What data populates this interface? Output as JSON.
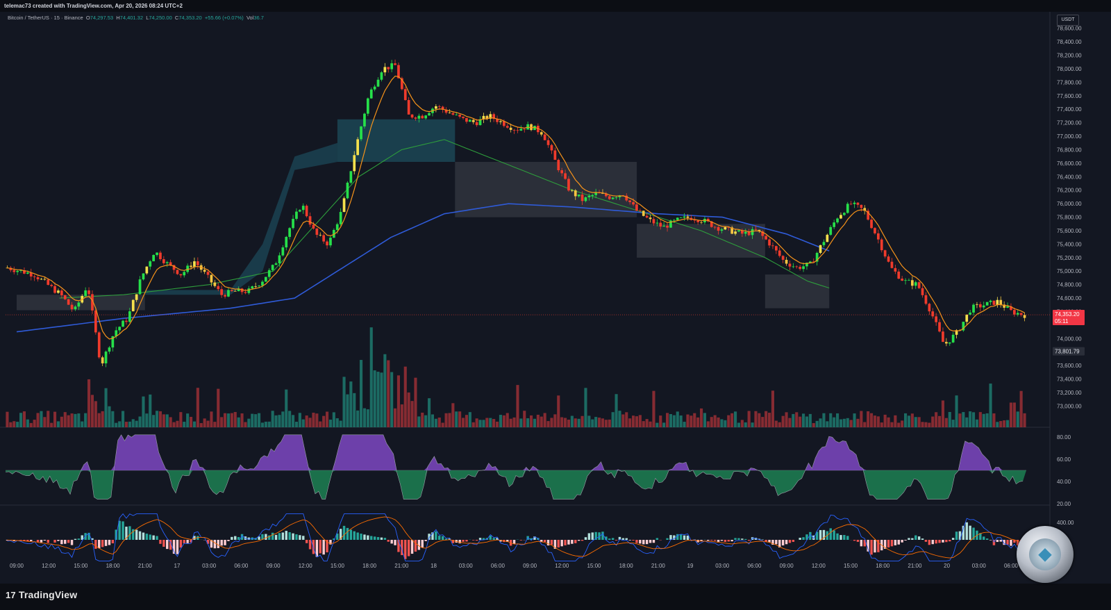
{
  "header": {
    "credit": "telemac73 created with TradingView.com, Apr 20, 2026 08:24 UTC+2"
  },
  "legend": {
    "symbol": "Bitcoin / TetherUS · 15 · Binance",
    "open_label": "O",
    "open": "74,297.53",
    "high_label": "H",
    "high": "74,401.32",
    "low_label": "L",
    "low": "74,250.00",
    "close_label": "C",
    "close": "74,353.20",
    "change": "+55.66 (+0.07%)",
    "vol_label": "Vol",
    "vol": "36.7"
  },
  "price_axis": {
    "currency": "USDT",
    "current_price_label": "74,353.20",
    "countdown": "05:11",
    "marker_label": "73,801.79"
  },
  "indicator_axes": {
    "rsi_ticks": [
      "80.00",
      "60.00",
      "40.00",
      "20.00"
    ],
    "macd_tick": "400.00"
  },
  "footer": {
    "brand_logo": "17",
    "brand": "TradingView"
  },
  "colors": {
    "background": "#131722",
    "up": "#26e04a",
    "down": "#ef3b2c",
    "ema_fast": "#f7931a",
    "ma_green": "#2e9e3c",
    "ma_blue": "#2f5bd8",
    "cloud_teal": "#1f5a6b",
    "cloud_grey": "#4a4d57",
    "rsi_up": "#8c4fd8",
    "rsi_down": "#1f8f5a"
  },
  "chart_data": {
    "type": "candlestick",
    "title": "Bitcoin / TetherUS · 15 · Binance",
    "ylim": [
      72850,
      78700
    ],
    "y_ticks": [
      78600,
      78400,
      78200,
      78000,
      77800,
      77600,
      77400,
      77200,
      77000,
      76800,
      76600,
      76400,
      76200,
      76000,
      75800,
      75600,
      75400,
      75200,
      75000,
      74800,
      74600,
      74400,
      74000,
      73600,
      73400,
      73200,
      73000
    ],
    "y_tick_labels": [
      "78,600.00",
      "78,400.00",
      "78,200.00",
      "78,000.00",
      "77,800.00",
      "77,600.00",
      "77,400.00",
      "77,200.00",
      "77,000.00",
      "76,800.00",
      "76,600.00",
      "76,400.00",
      "76,200.00",
      "76,000.00",
      "75,800.00",
      "75,600.00",
      "75,400.00",
      "75,200.00",
      "75,000.00",
      "74,800.00",
      "74,600.00",
      "74,400.00",
      "74,000.00",
      "73,600.00",
      "73,400.00",
      "73,200.00",
      "73,000.00"
    ],
    "x_labels": [
      "09:00",
      "12:00",
      "15:00",
      "18:00",
      "21:00",
      "17",
      "03:00",
      "06:00",
      "09:00",
      "12:00",
      "15:00",
      "18:00",
      "21:00",
      "18",
      "03:00",
      "06:00",
      "09:00",
      "12:00",
      "15:00",
      "18:00",
      "21:00",
      "19",
      "03:00",
      "06:00",
      "09:00",
      "12:00",
      "15:00",
      "18:00",
      "21:00",
      "20",
      "03:00",
      "06:00"
    ],
    "x_hours_per_label": 3,
    "close_anchors": [
      [
        0,
        75050
      ],
      [
        2,
        74950
      ],
      [
        4,
        74650
      ],
      [
        5,
        74400
      ],
      [
        6,
        74800
      ],
      [
        7,
        73600
      ],
      [
        8,
        74100
      ],
      [
        9,
        74300
      ],
      [
        10,
        74900
      ],
      [
        11,
        75300
      ],
      [
        12,
        75100
      ],
      [
        13,
        74950
      ],
      [
        14,
        75150
      ],
      [
        15,
        74900
      ],
      [
        16,
        74650
      ],
      [
        17,
        74700
      ],
      [
        18,
        74700
      ],
      [
        19,
        74850
      ],
      [
        20,
        75100
      ],
      [
        21,
        75600
      ],
      [
        22,
        76000
      ],
      [
        23,
        75550
      ],
      [
        24,
        75400
      ],
      [
        25,
        75900
      ],
      [
        26,
        76800
      ],
      [
        27,
        77600
      ],
      [
        28,
        78000
      ],
      [
        29,
        78050
      ],
      [
        30,
        77300
      ],
      [
        31,
        77300
      ],
      [
        32,
        77450
      ],
      [
        33,
        77350
      ],
      [
        34,
        77250
      ],
      [
        35,
        77200
      ],
      [
        36,
        77300
      ],
      [
        37,
        77200
      ],
      [
        38,
        77100
      ],
      [
        39,
        77150
      ],
      [
        40,
        77050
      ],
      [
        41,
        76600
      ],
      [
        42,
        76200
      ],
      [
        43,
        76050
      ],
      [
        44,
        76150
      ],
      [
        45,
        76100
      ],
      [
        46,
        76150
      ],
      [
        47,
        75900
      ],
      [
        48,
        75750
      ],
      [
        49,
        75650
      ],
      [
        50,
        75750
      ],
      [
        51,
        75800
      ],
      [
        52,
        75750
      ],
      [
        53,
        75650
      ],
      [
        54,
        75600
      ],
      [
        55,
        75550
      ],
      [
        56,
        75600
      ],
      [
        57,
        75400
      ],
      [
        58,
        75150
      ],
      [
        59,
        75050
      ],
      [
        60,
        75100
      ],
      [
        61,
        75450
      ],
      [
        62,
        75800
      ],
      [
        63,
        76000
      ],
      [
        64,
        75900
      ],
      [
        65,
        75500
      ],
      [
        66,
        75050
      ],
      [
        67,
        74850
      ],
      [
        68,
        74800
      ],
      [
        69,
        74400
      ],
      [
        70,
        73900
      ],
      [
        71,
        74100
      ],
      [
        72,
        74450
      ],
      [
        73,
        74500
      ],
      [
        74,
        74550
      ],
      [
        75,
        74400
      ],
      [
        76,
        74350
      ]
    ],
    "ma_blue": [
      [
        0,
        74100
      ],
      [
        10,
        74300
      ],
      [
        20,
        74450
      ],
      [
        26,
        74600
      ],
      [
        30,
        75000
      ],
      [
        35,
        75500
      ],
      [
        40,
        75850
      ],
      [
        46,
        76000
      ],
      [
        52,
        75950
      ],
      [
        60,
        75850
      ],
      [
        66,
        75800
      ],
      [
        72,
        75550
      ],
      [
        76,
        75300
      ]
    ],
    "ma_green": [
      [
        4,
        74600
      ],
      [
        10,
        74650
      ],
      [
        18,
        74800
      ],
      [
        24,
        75000
      ],
      [
        28,
        75700
      ],
      [
        32,
        76400
      ],
      [
        36,
        76800
      ],
      [
        40,
        76950
      ],
      [
        44,
        76700
      ],
      [
        48,
        76450
      ],
      [
        52,
        76200
      ],
      [
        58,
        75900
      ],
      [
        64,
        75600
      ],
      [
        70,
        75200
      ],
      [
        74,
        74850
      ],
      [
        76,
        74750
      ]
    ],
    "current_price": 74353.2,
    "price_marker": 73801.79,
    "rsi": {
      "ylim": [
        20,
        85
      ],
      "midline": 50,
      "ticks": [
        80,
        60,
        40,
        20
      ]
    },
    "macd": {
      "ticks": [
        400
      ]
    },
    "legend_placement": "top-left"
  }
}
